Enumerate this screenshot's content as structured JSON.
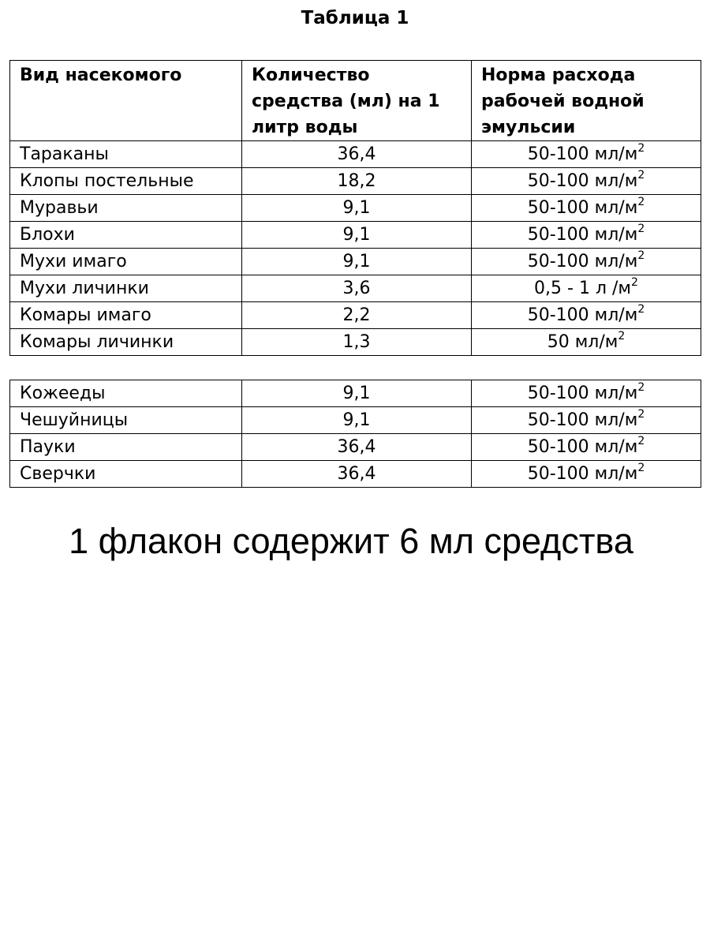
{
  "title": "Таблица 1",
  "headers": [
    "Вид насекомого",
    "Количество средства (мл) на 1 литр воды",
    "Норма расхода рабочей водной эмульсии"
  ],
  "table1": [
    {
      "insect": "Тараканы",
      "amount": "36,4",
      "rate": "50-100 мл/м",
      "sup": "2"
    },
    {
      "insect": "Клопы постельные",
      "amount": "18,2",
      "rate": "50-100 мл/м",
      "sup": "2"
    },
    {
      "insect": "Муравьи",
      "amount": "9,1",
      "rate": "50-100 мл/м",
      "sup": "2"
    },
    {
      "insect": "Блохи",
      "amount": "9,1",
      "rate": "50-100 мл/м",
      "sup": "2"
    },
    {
      "insect": "Мухи имаго",
      "amount": "9,1",
      "rate": "50-100 мл/м",
      "sup": "2"
    },
    {
      "insect": "Мухи личинки",
      "amount": "3,6",
      "rate": "0,5 - 1 л /м",
      "sup": "2"
    },
    {
      "insect": "Комары имаго",
      "amount": "2,2",
      "rate": "50-100 мл/м",
      "sup": "2"
    },
    {
      "insect": "Комары личинки",
      "amount": "1,3",
      "rate": "50 мл/м",
      "sup": "2"
    }
  ],
  "table2": [
    {
      "insect": "Кожееды",
      "amount": "9,1",
      "rate": "50-100 мл/м",
      "sup": "2"
    },
    {
      "insect": "Чешуйницы",
      "amount": "9,1",
      "rate": "50-100 мл/м",
      "sup": "2"
    },
    {
      "insect": "Пауки",
      "amount": "36,4",
      "rate": "50-100 мл/м",
      "sup": "2"
    },
    {
      "insect": "Сверчки",
      "amount": "36,4",
      "rate": "50-100 мл/м",
      "sup": "2"
    }
  ],
  "footer": "1 флакон содержит 6 мл средства"
}
